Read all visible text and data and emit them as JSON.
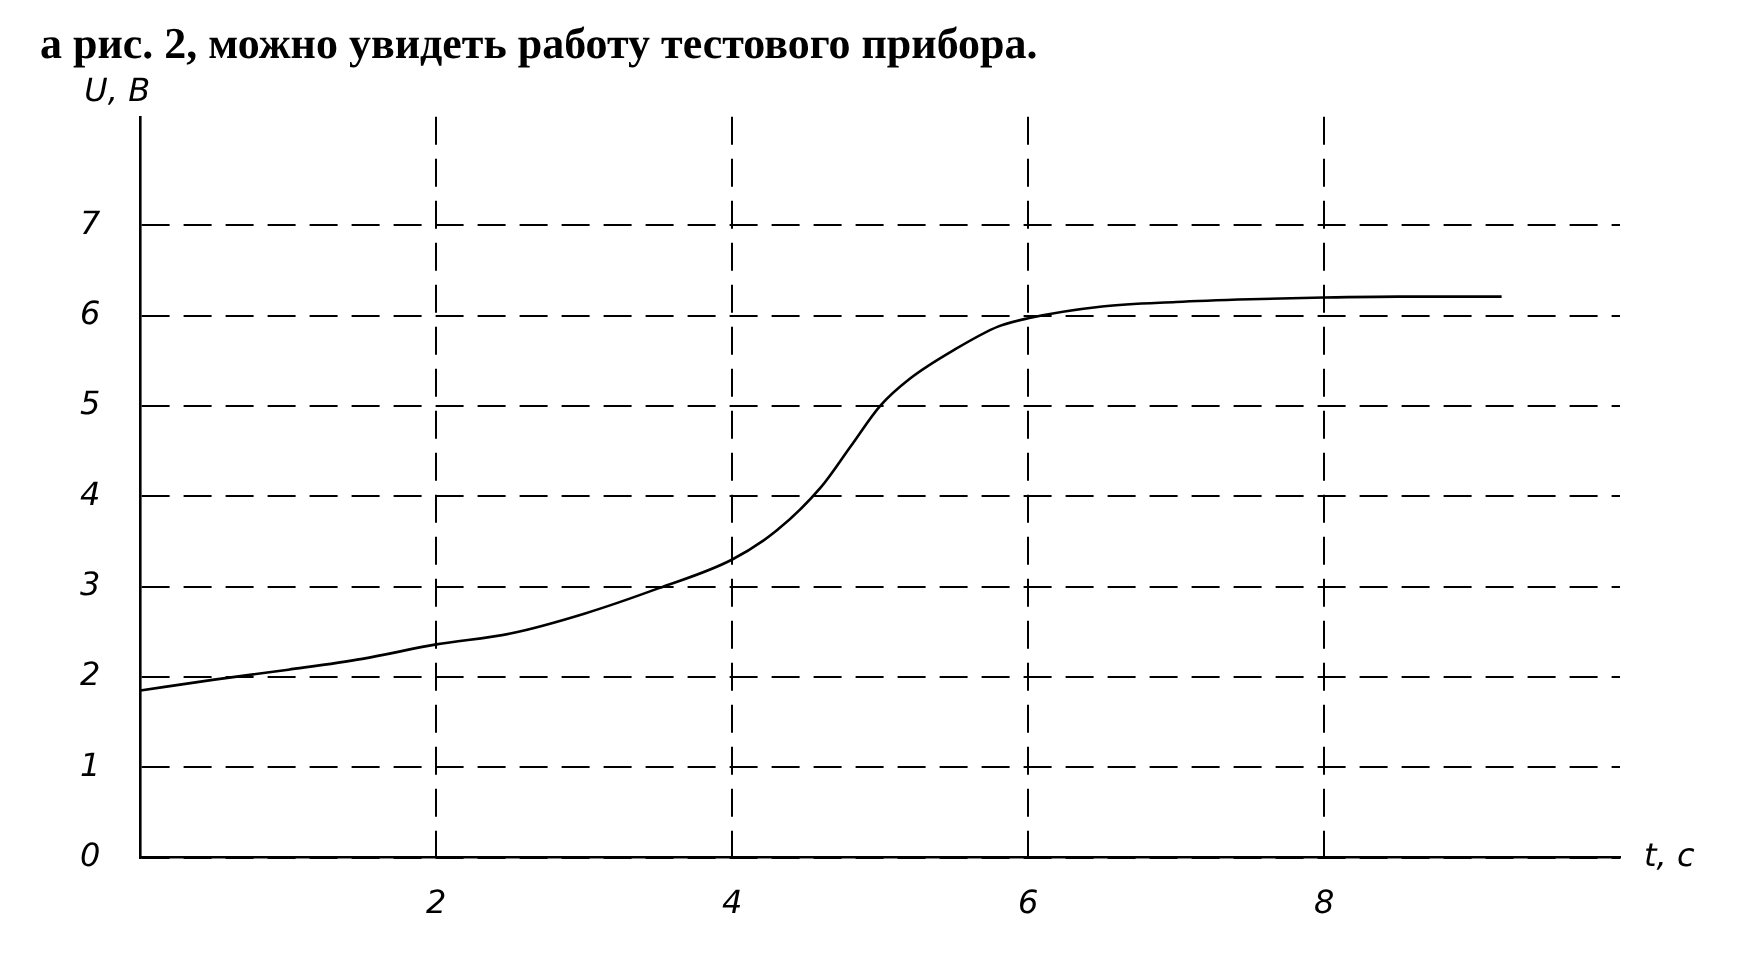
{
  "chart_data": {
    "type": "line",
    "title": "а рис. 2, можно увидеть работу тестового прибора.",
    "xlabel": "t, c",
    "ylabel": "U, B",
    "x": [
      0,
      0.5,
      1,
      1.5,
      2,
      2.5,
      3,
      3.5,
      4,
      4.3,
      4.6,
      4.8,
      5,
      5.2,
      5.5,
      5.8,
      6,
      6.5,
      7,
      7.5,
      8,
      8.5,
      9.2
    ],
    "series": [
      {
        "color": "#000000",
        "values": [
          1.85,
          1.97,
          2.08,
          2.2,
          2.36,
          2.48,
          2.7,
          2.98,
          3.3,
          3.62,
          4.1,
          4.55,
          5.0,
          5.3,
          5.62,
          5.88,
          5.97,
          6.1,
          6.15,
          6.18,
          6.2,
          6.21,
          6.21
        ]
      }
    ],
    "xlim": [
      0,
      10
    ],
    "ylim": [
      0,
      8.2
    ],
    "xticks": [
      2,
      4,
      6,
      8
    ],
    "yticks": [
      0,
      1,
      2,
      3,
      4,
      5,
      6,
      7
    ],
    "grid": true,
    "legend": false,
    "marker": "none",
    "line_style": "solid"
  }
}
